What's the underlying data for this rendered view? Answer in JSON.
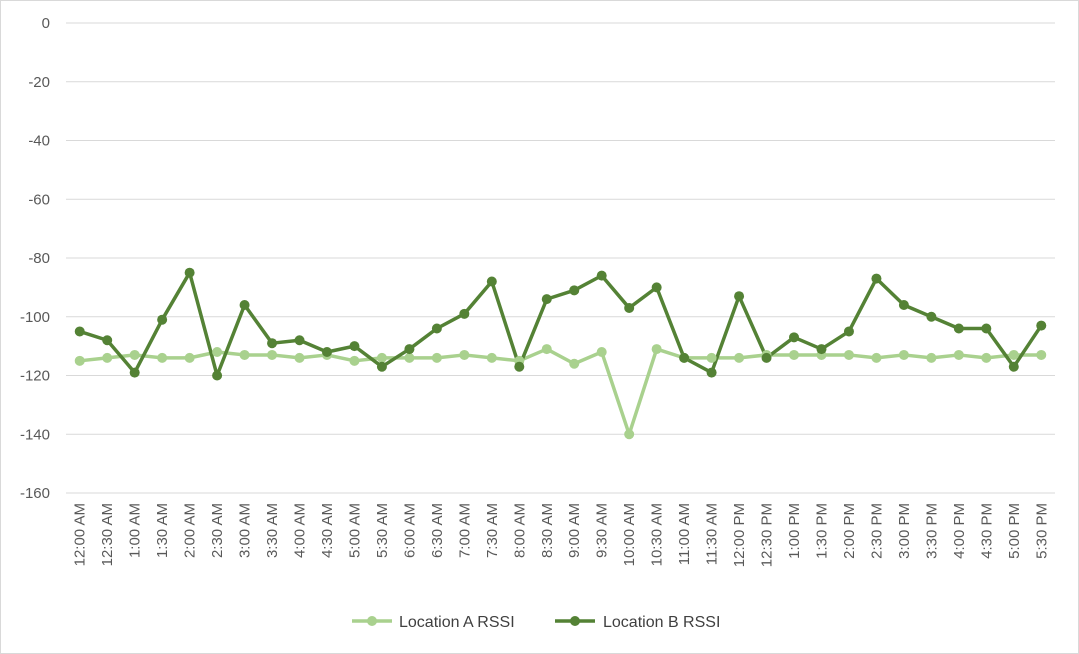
{
  "chart_data": {
    "type": "line",
    "title": "",
    "xlabel": "",
    "ylabel": "",
    "ylim": [
      -160,
      0
    ],
    "yticks": [
      "0",
      "-20",
      "-40",
      "-60",
      "-80",
      "-100",
      "-120",
      "-140",
      "-160"
    ],
    "grid": true,
    "legend_position": "bottom",
    "categories": [
      "12:00 AM",
      "12:30 AM",
      "1:00 AM",
      "1:30 AM",
      "2:00 AM",
      "2:30 AM",
      "3:00 AM",
      "3:30 AM",
      "4:00 AM",
      "4:30 AM",
      "5:00 AM",
      "5:30 AM",
      "6:00 AM",
      "6:30 AM",
      "7:00 AM",
      "7:30 AM",
      "8:00 AM",
      "8:30 AM",
      "9:00 AM",
      "9:30 AM",
      "10:00 AM",
      "10:30 AM",
      "11:00 AM",
      "11:30 AM",
      "12:00 PM",
      "12:30 PM",
      "1:00 PM",
      "1:30 PM",
      "2:00 PM",
      "2:30 PM",
      "3:00 PM",
      "3:30 PM",
      "4:00 PM",
      "4:30 PM",
      "5:00 PM",
      "5:30 PM"
    ],
    "series": [
      {
        "name": "Location A RSSI",
        "color": "#a9d18e",
        "values": [
          -115,
          -114,
          -113,
          -114,
          -114,
          -112,
          -113,
          -113,
          -114,
          -113,
          -115,
          -114,
          -114,
          -114,
          -113,
          -114,
          -115,
          -111,
          -116,
          -112,
          -140,
          -111,
          -114,
          -114,
          -114,
          -113,
          -113,
          -113,
          -113,
          -114,
          -113,
          -114,
          -113,
          -114,
          -113,
          -113
        ]
      },
      {
        "name": "Location B RSSI",
        "color": "#548235",
        "values": [
          -105,
          -108,
          -119,
          -101,
          -85,
          -120,
          -96,
          -109,
          -108,
          -112,
          -110,
          -117,
          -111,
          -104,
          -99,
          -88,
          -117,
          -94,
          -91,
          -86,
          -97,
          -90,
          -114,
          -119,
          -93,
          -114,
          -107,
          -111,
          -105,
          -87,
          -96,
          -100,
          -104,
          -104,
          -117,
          -103
        ]
      }
    ]
  }
}
